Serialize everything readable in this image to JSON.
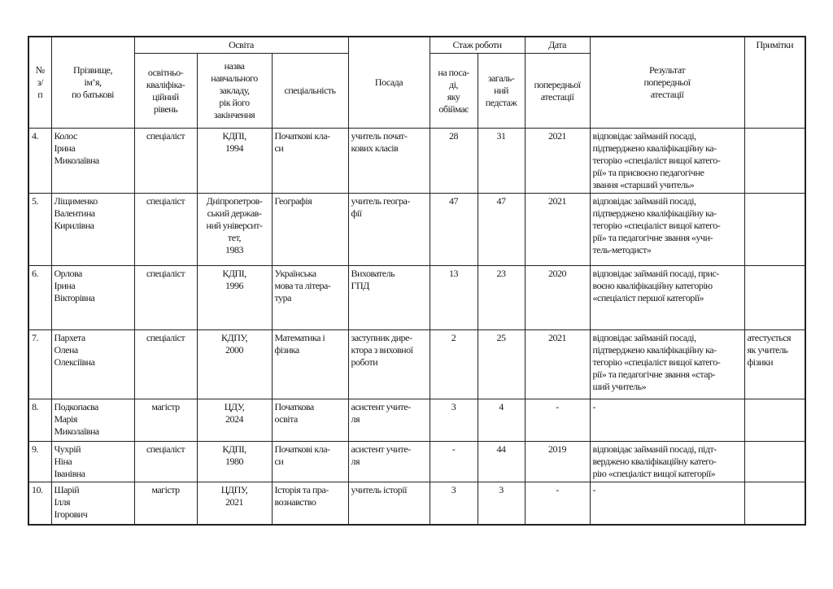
{
  "header": {
    "num": "№\nз/\nп",
    "name": "Прізвище,\nім’я,\nпо батькові",
    "education": "Освіта",
    "edu_level": "освітньо-\nкваліфіка-\nційний\nрівень",
    "edu_school": "назва\nнавчального\nзакладу,\nрік його\nзакінчення",
    "edu_specialty": "спеціальність",
    "position": "Посада",
    "experience": "Стаж роботи",
    "exp_position": "на поса-\nді,\nяку\nобіймає",
    "exp_total": "загаль-\nний\nпедстаж",
    "date": "Дата",
    "date_prev": "попередньої\nатестації",
    "result": "Результат\nпопередньої\nатестації",
    "notes": "Примітки"
  },
  "rows": [
    {
      "num": "4.",
      "name": "Колос\nІрина\nМиколаївна",
      "level": "спеціаліст",
      "school": "КДПІ,\n1994",
      "specialty": "Початкові кла-\nси",
      "position": "учитель почат-\nкових класів",
      "exp_pos": "28",
      "exp_total": "31",
      "date": "2021",
      "result": "відповідає займаній посаді,\nпідтверджено кваліфікаційну ка-\nтегорію «спеціаліст вищої катего-\nрії» та присвоєно педагогічне\nзвання «старший учитель»",
      "notes": ""
    },
    {
      "num": "5.",
      "name": "Ліщименко\nВалентина\nКирилівна",
      "level": "спеціаліст",
      "school": "Дніпропетров-\nський держав-\nний університ-\nтет,\n1983",
      "specialty": "Географія",
      "position": "учитель геогра-\nфії",
      "exp_pos": "47",
      "exp_total": "47",
      "date": "2021",
      "result": "відповідає займаній посаді,\nпідтверджено кваліфікаційну ка-\nтегорію «спеціаліст вищої катего-\nрії» та педагогічне звання «учи-\nтель-методист»",
      "notes": ""
    },
    {
      "num": "6.",
      "name": "Орлова\nІрина\nВікторівна",
      "level": "спеціаліст",
      "school": "КДПІ,\n1996",
      "specialty": "Українська\nмова та літера-\nтура",
      "position": "Вихователь\nГПД",
      "exp_pos": "13",
      "exp_total": "23",
      "date": "2020",
      "result": "відповідає займаній посаді,  прис-\nвоєно кваліфікаційну категорію\n«спеціаліст першої категорії»",
      "notes": ""
    },
    {
      "num": "7.",
      "name": "Пархета\nОлена\nОлексіївна",
      "level": "спеціаліст",
      "school": "КДПУ,\n2000",
      "specialty": "Математика і\nфізика",
      "position": "заступник дире-\nктора з виховної\nроботи",
      "exp_pos": "2",
      "exp_total": "25",
      "date": "2021",
      "result": "відповідає займаній посаді,\nпідтверджено кваліфікаційну ка-\nтегорію «спеціаліст вищої катего-\nрії» та педагогічне звання «стар-\nший учитель»",
      "notes": "атестується\nяк учитель\nфізики"
    },
    {
      "num": "8.",
      "name": "Подкопаєва\nМарія\nМиколаївна",
      "level": "магістр",
      "school": "ЦДУ,\n2024",
      "specialty": "Початкова\nосвіта",
      "position": "асистент учите-\nля",
      "exp_pos": "3",
      "exp_total": "4",
      "date": "-",
      "result": "-",
      "notes": ""
    },
    {
      "num": "9.",
      "name": "Чухрій\nНіна\nІванівна",
      "level": "спеціаліст",
      "school": "КДПІ,\n1980",
      "specialty": "Початкові кла-\nси",
      "position": "асистент учите-\nля",
      "exp_pos": "-",
      "exp_total": "44",
      "date": "2019",
      "result": "відповідає займаній посаді, підт-\nверджено кваліфікаційну катего-\nрію «спеціаліст вищої категорії»",
      "notes": ""
    },
    {
      "num": "10.",
      "name": "Шарій\nІлля\nІгорович",
      "level": "магістр",
      "school": "ЦДПУ,\n2021",
      "specialty": "Історія та пра-\nвознавство",
      "position": "учитель історії",
      "exp_pos": "3",
      "exp_total": "3",
      "date": "-",
      "result": "-",
      "notes": ""
    }
  ]
}
